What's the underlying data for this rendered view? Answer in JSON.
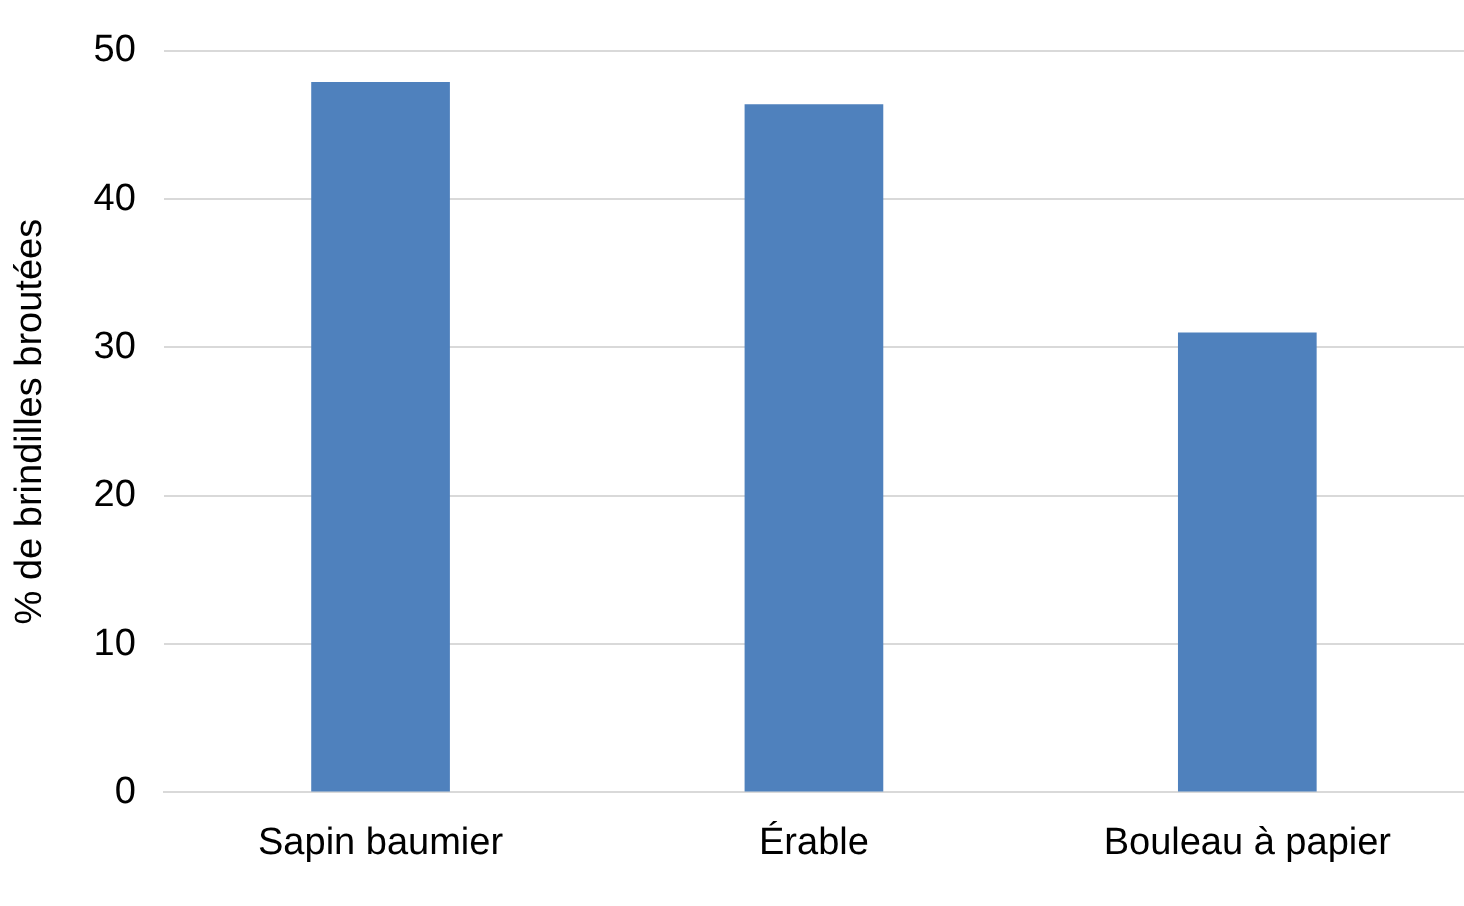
{
  "chart_data": {
    "type": "bar",
    "ylabel": "% de brindilles broutées",
    "categories": [
      "Sapin baumier",
      "Érable",
      "Bouleau à papier"
    ],
    "values": [
      47.9,
      46.4,
      31.0
    ],
    "color": "#4f81bd",
    "ylim": [
      0,
      50
    ],
    "yticks": [
      0,
      10,
      20,
      30,
      40,
      50
    ],
    "grid": "y",
    "legend": false
  }
}
